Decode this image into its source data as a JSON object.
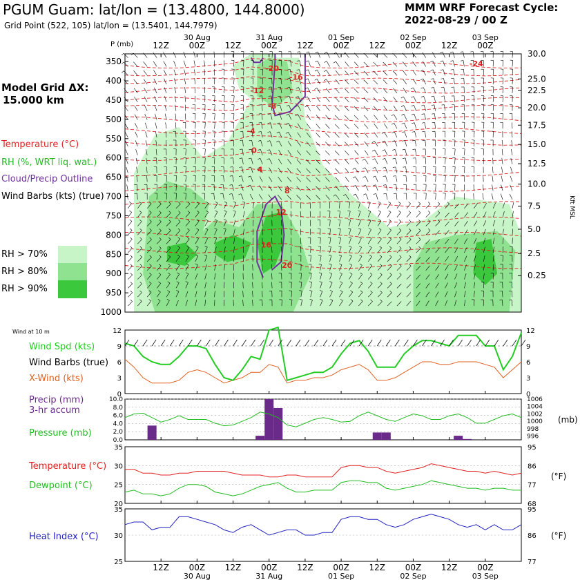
{
  "header": {
    "title": "PGUM Guam:  lat/lon = (13.4800, 144.8000)",
    "grid_point": "Grid Point (522, 105) lat/lon = (13.5401, 144.7979)",
    "cycle_line1": "MMM WRF Forecast Cycle:",
    "cycle_line2": "2022-08-29 / 00  Z",
    "model_grid_line1": "Model Grid ΔX:",
    "model_grid_line2": "15.000 km"
  },
  "legend": {
    "temperature": "Temperature (°C)",
    "rh": "RH (%, WRT liq. wat.)",
    "cloud": "Cloud/Precip Outline",
    "barbs": "Wind Barbs (kts) (true)",
    "rh70": "RH > 70%",
    "rh80": "RH > 80%",
    "rh90": "RH > 90%"
  },
  "colors": {
    "temperature": "#e02020",
    "rh70": "#c8f5c8",
    "rh80": "#8fe28f",
    "rh90": "#3cc83c",
    "cloud": "#7030a0",
    "wind_speed": "#22cc22",
    "x_wind": "#e06020",
    "precip": "#6a2a8a",
    "pressure": "#22bb22",
    "dewpoint": "#22bb22",
    "heat_index": "#2020c0"
  },
  "chart_data": [
    {
      "type": "heatmap",
      "name": "cross-section",
      "y_left_title": "P (mb)",
      "y_left_ticks": [
        "350",
        "400",
        "450",
        "500",
        "550",
        "600",
        "650",
        "700",
        "750",
        "800",
        "850",
        "900",
        "950",
        "1000"
      ],
      "y_right_title": "Kft MSL",
      "y_right_ticks": [
        "30.0",
        "25.0",
        "22.5",
        "20.0",
        "17.5",
        "15.0",
        "12.5",
        "10.0",
        "7.5",
        "5.0",
        "2.5",
        "0.25"
      ],
      "x_top_hours": [
        "12Z",
        "00Z",
        "12Z",
        "00Z",
        "12Z",
        "00Z",
        "12Z",
        "00Z",
        "12Z",
        "00Z"
      ],
      "x_dates": [
        "30 Aug",
        "31 Aug",
        "01 Sep",
        "02 Sep",
        "03 Sep"
      ],
      "temperature_labels": [
        {
          "text": "-24",
          "hour": 117,
          "p": 355
        },
        {
          "text": "-20",
          "hour": 49,
          "p": 368
        },
        {
          "text": "-16",
          "hour": 57,
          "p": 390
        },
        {
          "text": "-12",
          "hour": 44,
          "p": 425
        },
        {
          "text": "-8",
          "hour": 49,
          "p": 465
        },
        {
          "text": "-4",
          "hour": 42,
          "p": 530
        },
        {
          "text": "0",
          "hour": 43,
          "p": 580
        },
        {
          "text": "4",
          "hour": 45,
          "p": 630
        },
        {
          "text": "8",
          "hour": 54,
          "p": 685
        },
        {
          "text": "12",
          "hour": 52,
          "p": 740
        },
        {
          "text": "16",
          "hour": 47,
          "p": 825
        },
        {
          "text": "20",
          "hour": 54,
          "p": 878
        }
      ]
    },
    {
      "type": "line",
      "name": "wind",
      "title": "Wind at 10 m",
      "series_labels": [
        "Wind Spd (kts)",
        "Wind Barbs (true)",
        "X-Wind (kts)"
      ],
      "y_ticks": [
        "12",
        "9",
        "6",
        "3",
        "0"
      ],
      "ylim": [
        0,
        12
      ],
      "x_hours": [
        0,
        3,
        6,
        9,
        12,
        15,
        18,
        21,
        24,
        27,
        30,
        33,
        36,
        39,
        42,
        45,
        48,
        51,
        54,
        57,
        60,
        63,
        66,
        69,
        72,
        75,
        78,
        81,
        84,
        87,
        90,
        93,
        96,
        99,
        102,
        105,
        108,
        111,
        114,
        117,
        120,
        123,
        126,
        129,
        132
      ],
      "series": [
        {
          "name": "Wind Spd (kts)",
          "values": [
            9.5,
            9.0,
            7.0,
            6.0,
            5.5,
            5.5,
            7.0,
            9.0,
            9.0,
            8.5,
            5.5,
            3.0,
            2.5,
            4.5,
            7.0,
            6.5,
            12.0,
            12.5,
            2.5,
            3.0,
            3.5,
            4.0,
            4.0,
            5.0,
            7.5,
            9.5,
            10.0,
            8.0,
            5.0,
            5.0,
            5.0,
            7.5,
            9.0,
            10.0,
            10.0,
            9.5,
            9.0,
            11.0,
            11.0,
            11.0,
            9.0,
            9.0,
            4.5,
            7.0,
            11.5
          ]
        },
        {
          "name": "X-Wind (kts)",
          "values": [
            6.5,
            5.0,
            3.0,
            2.0,
            2.0,
            2.0,
            2.5,
            4.0,
            4.5,
            4.0,
            3.0,
            2.0,
            2.5,
            3.0,
            4.0,
            4.0,
            5.5,
            5.0,
            2.0,
            2.5,
            2.5,
            3.0,
            3.0,
            3.5,
            4.5,
            5.0,
            5.5,
            4.5,
            2.5,
            2.5,
            3.0,
            4.0,
            5.0,
            6.0,
            6.0,
            5.5,
            5.5,
            6.0,
            6.0,
            6.0,
            5.5,
            5.0,
            3.0,
            4.5,
            6.0
          ]
        }
      ]
    },
    {
      "type": "bar",
      "name": "precip-pressure",
      "series_labels": [
        "Precip (mm)",
        "3-hr accum",
        "Pressure (mb)"
      ],
      "y_left_ticks": [
        "10.0",
        "8.0",
        "6.0",
        "4.0",
        "2.0",
        "0.0"
      ],
      "y_right_ticks": [
        "1006",
        "1004",
        "1002",
        "1000",
        "998",
        "996"
      ],
      "y_right_unit": "(mb)",
      "ylim": [
        0,
        10
      ],
      "y2lim": [
        995,
        1006
      ],
      "precip": [
        {
          "hour": 9,
          "value": 3.5
        },
        {
          "hour": 45,
          "value": 1.0
        },
        {
          "hour": 48,
          "value": 10.0
        },
        {
          "hour": 51,
          "value": 7.8
        },
        {
          "hour": 84,
          "value": 1.8
        },
        {
          "hour": 87,
          "value": 1.8
        },
        {
          "hour": 111,
          "value": 1.0
        },
        {
          "hour": 114,
          "value": 0.2
        }
      ],
      "pressure": {
        "x_hours": [
          0,
          3,
          6,
          9,
          12,
          15,
          18,
          21,
          24,
          27,
          30,
          33,
          36,
          39,
          42,
          45,
          48,
          51,
          54,
          57,
          60,
          63,
          66,
          69,
          72,
          75,
          78,
          81,
          84,
          87,
          90,
          93,
          96,
          99,
          102,
          105,
          108,
          111,
          114,
          117,
          120,
          123,
          126,
          129,
          132
        ],
        "values": [
          1001.0,
          1002.0,
          1002.2,
          1001.0,
          999.8,
          1000.5,
          1001.5,
          1000.5,
          1000.5,
          1000.5,
          999.5,
          998.8,
          999.0,
          1000.0,
          1001.0,
          1002.5,
          1002.0,
          1001.0,
          999.0,
          998.5,
          999.5,
          1000.5,
          1001.0,
          1000.5,
          999.8,
          1000.0,
          1001.5,
          1002.5,
          1001.5,
          1000.5,
          1000.0,
          1001.0,
          1002.0,
          1001.5,
          1000.5,
          1000.5,
          1001.5,
          1002.0,
          1001.0,
          999.5,
          999.5,
          1000.5,
          1001.5,
          1002.0,
          1001.0
        ]
      }
    },
    {
      "type": "line",
      "name": "temperature-dewpoint",
      "series_labels": [
        "Temperature (°C)",
        "Dewpoint (°C)"
      ],
      "y_left_ticks": [
        "35",
        "30",
        "25",
        "20"
      ],
      "y_right_ticks": [
        "95",
        "86",
        "77",
        "68"
      ],
      "y_right_unit": "(°F)",
      "ylim": [
        20,
        35
      ],
      "x_hours": [
        0,
        3,
        6,
        9,
        12,
        15,
        18,
        21,
        24,
        27,
        30,
        33,
        36,
        39,
        42,
        45,
        48,
        51,
        54,
        57,
        60,
        63,
        66,
        69,
        72,
        75,
        78,
        81,
        84,
        87,
        90,
        93,
        96,
        99,
        102,
        105,
        108,
        111,
        114,
        117,
        120,
        123,
        126,
        129,
        132
      ],
      "series": [
        {
          "name": "Temperature (°C)",
          "values": [
            29.0,
            29.0,
            28.0,
            28.0,
            27.5,
            27.5,
            28.0,
            28.0,
            28.5,
            28.5,
            28.5,
            28.5,
            28.0,
            27.5,
            27.5,
            27.5,
            27.0,
            27.0,
            27.5,
            27.5,
            27.0,
            27.0,
            27.0,
            27.0,
            29.5,
            30.0,
            30.0,
            29.5,
            29.5,
            28.5,
            28.0,
            28.5,
            29.0,
            29.5,
            30.5,
            30.0,
            29.5,
            29.0,
            28.5,
            28.5,
            28.0,
            28.5,
            28.0,
            27.5,
            28.0
          ]
        },
        {
          "name": "Dewpoint (°C)",
          "values": [
            23.0,
            23.5,
            22.5,
            22.5,
            22.0,
            22.5,
            24.0,
            25.0,
            25.0,
            24.5,
            23.0,
            22.5,
            22.0,
            22.5,
            23.5,
            24.5,
            25.0,
            25.5,
            24.0,
            23.0,
            23.0,
            23.5,
            23.5,
            23.5,
            25.5,
            26.0,
            26.0,
            25.5,
            25.5,
            24.0,
            23.5,
            24.0,
            24.5,
            25.0,
            26.0,
            25.5,
            25.0,
            24.5,
            24.0,
            24.0,
            23.5,
            24.0,
            24.0,
            23.5,
            23.5
          ]
        }
      ]
    },
    {
      "type": "line",
      "name": "heat-index",
      "series_labels": [
        "Heat Index (°C)"
      ],
      "y_left_ticks": [
        "35",
        "30",
        "25"
      ],
      "y_right_ticks": [
        "95",
        "86",
        "77"
      ],
      "y_right_unit": "(°F)",
      "ylim": [
        25,
        35
      ],
      "x_hours": [
        0,
        3,
        6,
        9,
        12,
        15,
        18,
        21,
        24,
        27,
        30,
        33,
        36,
        39,
        42,
        45,
        48,
        51,
        54,
        57,
        60,
        63,
        66,
        69,
        72,
        75,
        78,
        81,
        84,
        87,
        90,
        93,
        96,
        99,
        102,
        105,
        108,
        111,
        114,
        117,
        120,
        123,
        126,
        129,
        132
      ],
      "series": [
        {
          "name": "Heat Index (°C)",
          "values": [
            32.0,
            32.5,
            32.5,
            31.0,
            31.5,
            31.5,
            33.5,
            33.5,
            33.0,
            32.5,
            32.0,
            31.0,
            30.5,
            31.5,
            32.0,
            31.0,
            30.0,
            30.5,
            31.0,
            31.0,
            30.0,
            30.0,
            30.5,
            30.5,
            33.0,
            33.5,
            33.5,
            33.0,
            33.0,
            32.0,
            31.5,
            32.0,
            33.0,
            33.5,
            34.0,
            33.5,
            33.0,
            32.0,
            31.5,
            32.0,
            31.0,
            32.0,
            31.0,
            31.0,
            32.0
          ]
        }
      ]
    }
  ]
}
